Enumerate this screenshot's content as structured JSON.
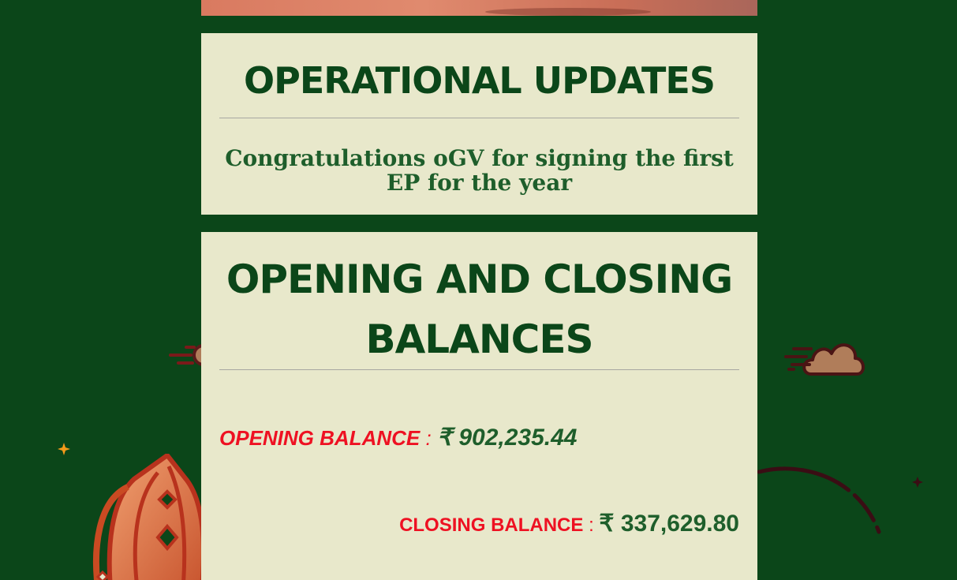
{
  "operational_updates": {
    "title": "OPERATIONAL UPDATES",
    "message": "Congratulations oGV for signing the first EP for the year"
  },
  "balances": {
    "title": "OPENING AND CLOSING BALANCES",
    "opening_label": "OPENING BALANCE",
    "opening_separator": " : ",
    "opening_value": "₹ 902,235.44",
    "closing_label": "CLOSING BALANCE",
    "closing_separator": " : ",
    "closing_value": "₹ 337,629.80"
  },
  "colors": {
    "background": "#0b4619",
    "card": "#e8e8cb",
    "title": "#0b4619",
    "label_red": "#ee1122",
    "value_green": "#1e5e2b"
  },
  "icons": [
    "cloud-icon",
    "lantern-icon",
    "sparkle-icon"
  ]
}
